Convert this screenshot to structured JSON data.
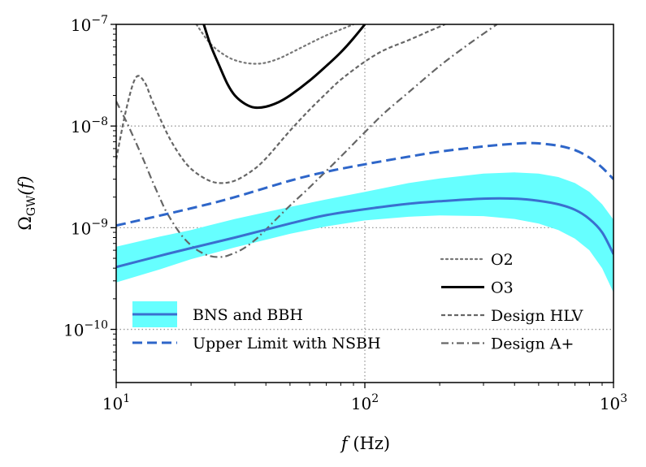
{
  "chart_data": {
    "type": "line",
    "x_scale": "log",
    "y_scale": "log",
    "xlim": [
      10,
      1000
    ],
    "ylim": [
      3e-11,
      1e-07
    ],
    "xlabel": {
      "symbol": "f",
      "unit": "(Hz)"
    },
    "ylabel": {
      "symbol": "Ω",
      "subscript": "GW",
      "arg": "(f)"
    },
    "grid": "major, dotted",
    "x_ticks": [
      {
        "value": 10,
        "base": "10",
        "exp": "1"
      },
      {
        "value": 100,
        "base": "10",
        "exp": "2"
      },
      {
        "value": 1000,
        "base": "10",
        "exp": "3"
      }
    ],
    "y_ticks": [
      {
        "value": 1e-07,
        "base": "10",
        "exp": "−7"
      },
      {
        "value": 1e-08,
        "base": "10",
        "exp": "−8"
      },
      {
        "value": 1e-09,
        "base": "10",
        "exp": "−9"
      },
      {
        "value": 1e-10,
        "base": "10",
        "exp": "−10"
      }
    ],
    "band": {
      "name": "BNS and BBH",
      "color": "#66ffff",
      "x": [
        10,
        15,
        20,
        30,
        50,
        70,
        100,
        150,
        200,
        300,
        400,
        500,
        600,
        700,
        800,
        900,
        1000
      ],
      "lower": [
        2.9e-10,
        3.9e-10,
        4.9e-10,
        6.4e-10,
        8.7e-10,
        1.03e-09,
        1.18e-09,
        1.28e-09,
        1.32e-09,
        1.3e-09,
        1.22e-09,
        1.1e-09,
        9.5e-10,
        7.8e-10,
        6e-10,
        4e-10,
        2.3e-10
      ],
      "upper": [
        6.5e-10,
        8.2e-10,
        9.5e-10,
        1.22e-09,
        1.6e-09,
        1.9e-09,
        2.25e-09,
        2.75e-09,
        3.05e-09,
        3.4e-09,
        3.5e-09,
        3.4e-09,
        3.15e-09,
        2.75e-09,
        2.25e-09,
        1.7e-09,
        1.2e-09
      ]
    },
    "series": [
      {
        "name": "BNS and BBH",
        "color": "#3a6fcf",
        "style": "solid",
        "width": 3,
        "x": [
          10,
          15,
          20,
          30,
          50,
          70,
          100,
          150,
          200,
          300,
          400,
          500,
          600,
          700,
          800,
          900,
          1000
        ],
        "y": [
          4.1e-10,
          5.3e-10,
          6.3e-10,
          8e-10,
          1.1e-09,
          1.33e-09,
          1.52e-09,
          1.72e-09,
          1.82e-09,
          1.93e-09,
          1.93e-09,
          1.84e-09,
          1.7e-09,
          1.5e-09,
          1.22e-09,
          9e-10,
          5.5e-10
        ]
      },
      {
        "name": "Upper Limit with NSBH",
        "color": "#2e66c9",
        "style": "dashed",
        "width": 3,
        "x": [
          10,
          20,
          30,
          50,
          70,
          100,
          150,
          200,
          300,
          400,
          450,
          500,
          600,
          700,
          800,
          900,
          1000
        ],
        "y": [
          1.05e-09,
          1.55e-09,
          2e-09,
          2.9e-09,
          3.55e-09,
          4.2e-09,
          5e-09,
          5.6e-09,
          6.3e-09,
          6.7e-09,
          6.8e-09,
          6.75e-09,
          6.4e-09,
          5.8e-09,
          4.9e-09,
          3.9e-09,
          3e-09
        ]
      },
      {
        "name": "O2",
        "color": "#777777",
        "style": "dotted",
        "width": 2.2,
        "x": [
          21,
          24,
          28,
          32,
          36,
          40,
          45,
          50,
          60,
          70,
          80,
          90
        ],
        "y": [
          1e-07,
          6.4e-08,
          4.8e-08,
          4.25e-08,
          4.1e-08,
          4.2e-08,
          4.6e-08,
          5.2e-08,
          6.5e-08,
          7.8e-08,
          8.9e-08,
          1e-07
        ]
      },
      {
        "name": "O3",
        "color": "#000000",
        "style": "solid",
        "width": 3,
        "x": [
          22.5,
          24,
          26,
          28,
          30,
          33,
          36,
          40,
          45,
          50,
          60,
          70,
          80,
          90,
          100
        ],
        "y": [
          1e-07,
          6.2e-08,
          3.9e-08,
          2.6e-08,
          2e-08,
          1.65e-08,
          1.52e-08,
          1.55e-08,
          1.72e-08,
          2e-08,
          2.8e-08,
          3.9e-08,
          5.3e-08,
          7.3e-08,
          1e-07
        ]
      },
      {
        "name": "Design HLV",
        "color": "#666666",
        "style": "short-dashed",
        "width": 2.2,
        "x": [
          10,
          11,
          12,
          13,
          14,
          16,
          18,
          20,
          23,
          26,
          30,
          35,
          40,
          50,
          60,
          70,
          80,
          100,
          120,
          150,
          180,
          210
        ],
        "y": [
          4.7e-09,
          1.5e-08,
          3e-08,
          2.7e-08,
          1.75e-08,
          8.5e-09,
          5.2e-09,
          3.8e-09,
          3e-09,
          2.75e-09,
          2.9e-09,
          3.6e-09,
          4.8e-09,
          9e-09,
          1.45e-08,
          2.1e-08,
          2.85e-08,
          4.3e-08,
          5.6e-08,
          7e-08,
          8.5e-08,
          1e-07
        ]
      },
      {
        "name": "Design A+",
        "color": "#666666",
        "style": "dash-dot",
        "width": 2.2,
        "x": [
          10,
          11,
          12,
          13,
          14,
          15,
          16,
          18,
          20,
          22,
          24,
          26,
          28,
          32,
          36,
          40,
          50,
          60,
          80,
          100,
          120,
          150,
          200,
          250,
          300,
          340
        ],
        "y": [
          1.75e-08,
          1.1e-08,
          6.9e-09,
          4.4e-09,
          2.85e-09,
          1.95e-09,
          1.4e-09,
          8.9e-10,
          6.7e-10,
          5.7e-10,
          5.25e-10,
          5.15e-10,
          5.3e-10,
          6.1e-10,
          7.5e-10,
          9.6e-10,
          1.65e-09,
          2.5e-09,
          5e-09,
          8.7e-09,
          1.35e-08,
          2.15e-08,
          3.9e-08,
          5.9e-08,
          8.1e-08,
          1e-07
        ]
      }
    ],
    "legends": [
      {
        "placement": "lower-left",
        "entries": [
          "BNS and BBH",
          "Upper Limit with NSBH"
        ]
      },
      {
        "placement": "lower-right",
        "entries": [
          "O2",
          "O3",
          "Design HLV",
          "Design A+"
        ]
      }
    ]
  }
}
